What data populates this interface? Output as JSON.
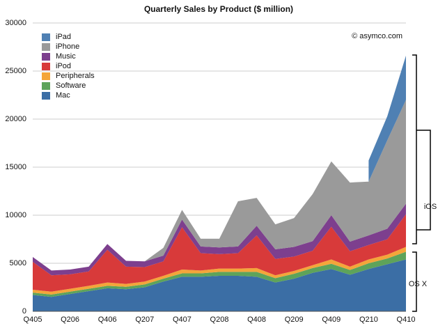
{
  "chart_data": {
    "type": "stacked-area",
    "title": "Quarterly Sales by Product ($ million)",
    "annotations": {
      "source": "© asymco.com",
      "ios": "iOS",
      "osx": "OS X"
    },
    "categories": [
      "Q405",
      null,
      "Q206",
      null,
      "Q406",
      null,
      "Q207",
      null,
      "Q407",
      null,
      "Q208",
      null,
      "Q408",
      null,
      "Q209",
      null,
      "Q409",
      null,
      "Q210",
      null,
      "Q410"
    ],
    "series": [
      {
        "name": "iPad",
        "color": "#4f80b3",
        "values": [
          null,
          null,
          null,
          null,
          null,
          null,
          null,
          null,
          null,
          null,
          null,
          null,
          null,
          null,
          null,
          null,
          null,
          null,
          2200,
          2500,
          4600
        ]
      },
      {
        "name": "iPhone",
        "color": "#9a9a9a",
        "values": [
          0,
          0,
          0,
          0,
          0,
          0,
          0,
          800,
          1000,
          800,
          900,
          4700,
          2900,
          2600,
          3000,
          4900,
          5600,
          6150,
          5600,
          9200,
          10800
        ]
      },
      {
        "name": "Music",
        "color": "#7d3f8e",
        "values": [
          500,
          500,
          500,
          500,
          600,
          600,
          600,
          600,
          800,
          700,
          700,
          700,
          1000,
          1000,
          1000,
          1000,
          1200,
          1000,
          1000,
          1100,
          1100
        ]
      },
      {
        "name": "iPod",
        "color": "#d83a3a",
        "values": [
          2900,
          1700,
          1500,
          1500,
          3400,
          1800,
          1500,
          1500,
          4400,
          1800,
          1500,
          1600,
          3400,
          1700,
          1500,
          1500,
          3400,
          1600,
          1500,
          1600,
          3400
        ]
      },
      {
        "name": "Peripherals",
        "color": "#f4a53a",
        "values": [
          300,
          300,
          300,
          300,
          350,
          300,
          300,
          300,
          400,
          300,
          350,
          350,
          400,
          300,
          300,
          300,
          450,
          350,
          400,
          400,
          500
        ]
      },
      {
        "name": "Software",
        "color": "#5ea35a",
        "values": [
          250,
          250,
          250,
          250,
          250,
          250,
          300,
          300,
          350,
          350,
          400,
          400,
          500,
          450,
          500,
          500,
          550,
          500,
          600,
          600,
          800
        ]
      },
      {
        "name": "Mac",
        "color": "#3b6ea5",
        "values": [
          1700,
          1500,
          1800,
          2100,
          2400,
          2300,
          2500,
          3100,
          3600,
          3600,
          3700,
          3700,
          3600,
          3000,
          3400,
          4000,
          4400,
          3800,
          4400,
          4900,
          5400
        ]
      }
    ],
    "ylim": [
      0,
      30000
    ],
    "yticks": [
      0,
      5000,
      10000,
      15000,
      20000,
      25000,
      30000
    ],
    "grid": true,
    "legend": "top-left"
  }
}
